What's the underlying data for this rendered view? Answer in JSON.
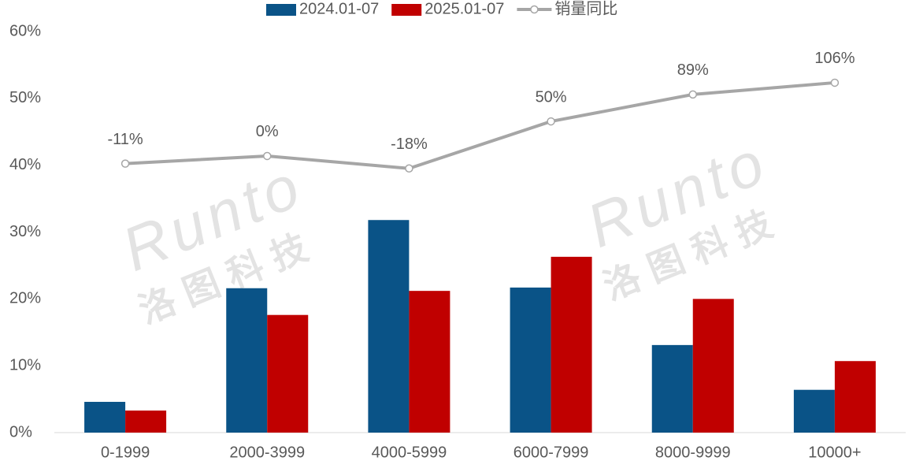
{
  "chart_data": {
    "type": "bar",
    "categories": [
      "0-1999",
      "2000-3999",
      "4000-5999",
      "6000-7999",
      "8000-9999",
      "10000+"
    ],
    "series": [
      {
        "name": "2024.01-07",
        "color": "#0a5387",
        "type": "bar",
        "values": [
          4.6,
          21.6,
          31.8,
          21.7,
          13.1,
          6.4
        ]
      },
      {
        "name": "2025.01-07",
        "color": "#c00000",
        "type": "bar",
        "values": [
          3.3,
          17.6,
          21.2,
          26.3,
          20.0,
          10.7
        ]
      },
      {
        "name": "销量同比",
        "color": "#a6a6a6",
        "type": "line",
        "axis": "y2",
        "values": [
          -11,
          0,
          -18,
          50,
          89,
          106
        ],
        "value_labels": [
          "-11%",
          "0%",
          "-18%",
          "50%",
          "89%",
          "106%"
        ]
      }
    ],
    "ylim": [
      0,
      60
    ],
    "yticks": [
      {
        "value": 0,
        "label": "0%"
      },
      {
        "value": 10,
        "label": "10%"
      },
      {
        "value": 20,
        "label": "20%"
      },
      {
        "value": 30,
        "label": "30%"
      },
      {
        "value": 40,
        "label": "40%"
      },
      {
        "value": 50,
        "label": "50%"
      },
      {
        "value": 60,
        "label": "60%"
      }
    ],
    "y2lim": [
      -400,
      180
    ],
    "legend": "top",
    "watermark": {
      "latin": "Runto",
      "chinese": "洛图科技"
    }
  }
}
